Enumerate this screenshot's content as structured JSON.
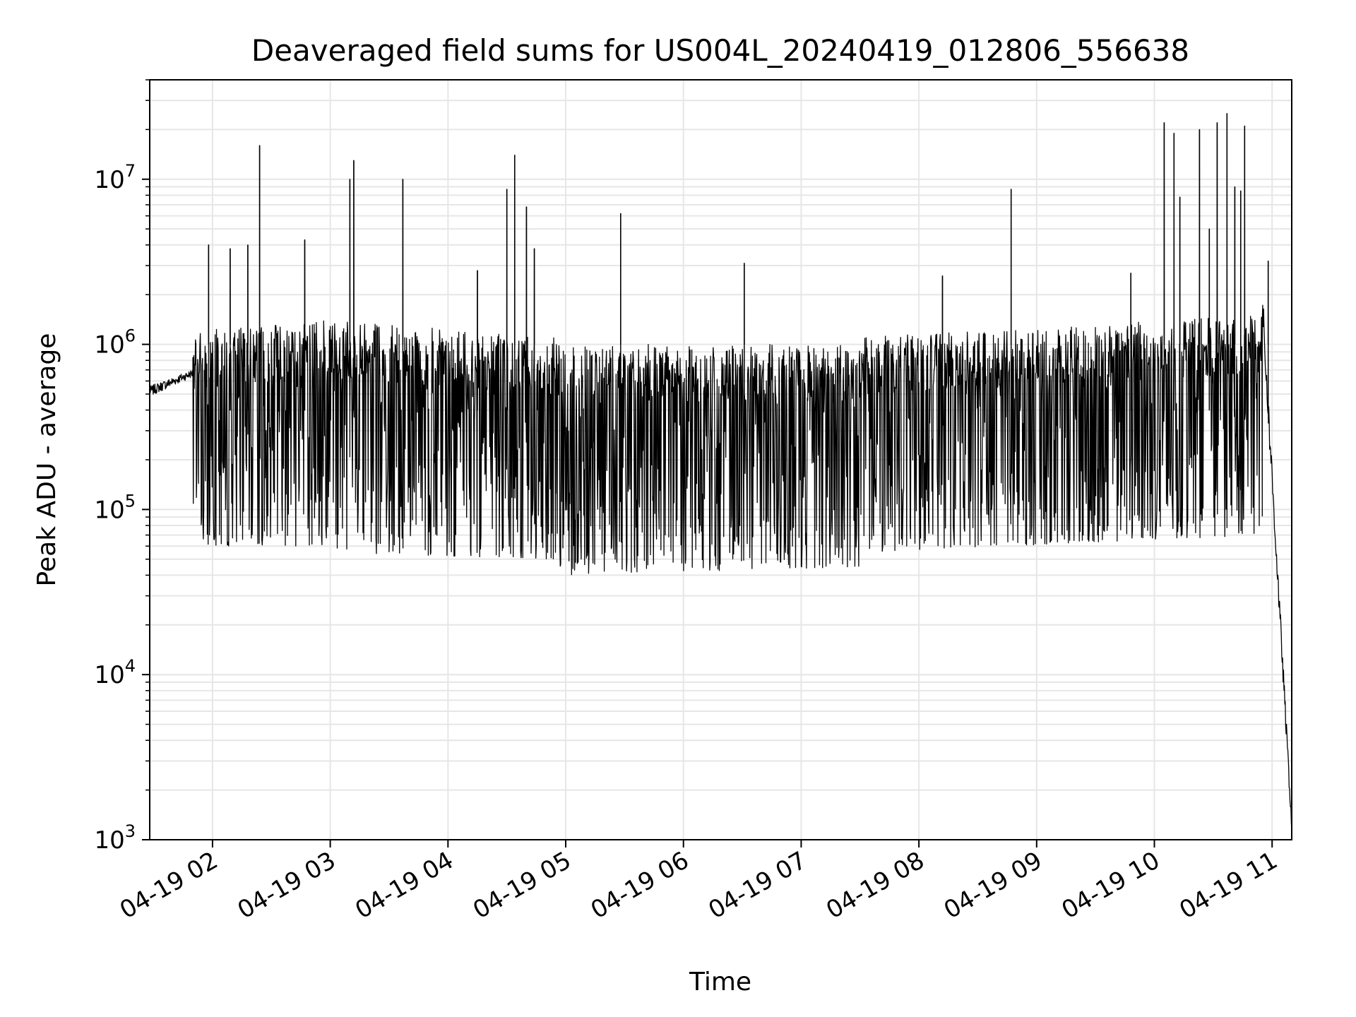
{
  "chart_data": {
    "type": "line",
    "title": "Deaveraged field sums for US004L_20240419_012806_556638",
    "xlabel": "Time",
    "ylabel": "Peak ADU - average",
    "yscale": "log",
    "ylim": [
      1000,
      40000000
    ],
    "xlim": [
      "2024-04-19 01:28",
      "2024-04-19 11:10"
    ],
    "grid": true,
    "line_color": "#000000",
    "grid_color": "#e6e6e6",
    "x_ticks": [
      "04-19 02",
      "04-19 03",
      "04-19 04",
      "04-19 05",
      "04-19 06",
      "04-19 07",
      "04-19 08",
      "04-19 09",
      "04-19 10",
      "04-19 11"
    ],
    "y_ticks": [
      {
        "value": 1000,
        "base": "10",
        "exp": "3"
      },
      {
        "value": 10000,
        "base": "10",
        "exp": "4"
      },
      {
        "value": 100000,
        "base": "10",
        "exp": "5"
      },
      {
        "value": 1000000,
        "base": "10",
        "exp": "6"
      },
      {
        "value": 10000000,
        "base": "10",
        "exp": "7"
      }
    ],
    "series": [
      {
        "style": "noisy-band",
        "segments": [
          {
            "x": [
              "2024-04-19 01:28",
              "2024-04-19 01:50"
            ],
            "upper": [
              600000,
              750000
            ],
            "lower": [
              450000,
              600000
            ]
          },
          {
            "x": [
              "2024-04-19 01:50",
              "2024-04-19 03:00"
            ],
            "upper": [
              1200000,
              1400000
            ],
            "lower": [
              60000,
              60000
            ]
          },
          {
            "x": [
              "2024-04-19 03:00",
              "2024-04-19 04:55"
            ],
            "upper": [
              1400000,
              1100000
            ],
            "lower": [
              55000,
              50000
            ]
          },
          {
            "x": [
              "2024-04-19 04:55",
              "2024-04-19 07:30"
            ],
            "upper": [
              1000000,
              1000000
            ],
            "lower": [
              40000,
              45000
            ]
          },
          {
            "x": [
              "2024-04-19 07:30",
              "2024-04-19 10:55"
            ],
            "upper": [
              1100000,
              1500000
            ],
            "lower": [
              55000,
              70000
            ]
          },
          {
            "x": [
              "2024-04-19 10:55",
              "2024-04-19 11:10"
            ],
            "upper": [
              3000000,
              1500
            ],
            "lower": [
              1000000,
              1000
            ]
          }
        ],
        "spikes": [
          {
            "x": "2024-04-19 01:58",
            "y": 4000000
          },
          {
            "x": "2024-04-19 02:09",
            "y": 3800000
          },
          {
            "x": "2024-04-19 02:18",
            "y": 4000000
          },
          {
            "x": "2024-04-19 02:24",
            "y": 16000000
          },
          {
            "x": "2024-04-19 02:47",
            "y": 4300000
          },
          {
            "x": "2024-04-19 03:10",
            "y": 10000000
          },
          {
            "x": "2024-04-19 03:12",
            "y": 13000000
          },
          {
            "x": "2024-04-19 03:37",
            "y": 10000000
          },
          {
            "x": "2024-04-19 04:15",
            "y": 2800000
          },
          {
            "x": "2024-04-19 04:30",
            "y": 8700000
          },
          {
            "x": "2024-04-19 04:34",
            "y": 14000000
          },
          {
            "x": "2024-04-19 04:40",
            "y": 6800000
          },
          {
            "x": "2024-04-19 04:44",
            "y": 3800000
          },
          {
            "x": "2024-04-19 05:28",
            "y": 6200000
          },
          {
            "x": "2024-04-19 06:31",
            "y": 3100000
          },
          {
            "x": "2024-04-19 08:12",
            "y": 2600000
          },
          {
            "x": "2024-04-19 08:47",
            "y": 8700000
          },
          {
            "x": "2024-04-19 09:48",
            "y": 2700000
          },
          {
            "x": "2024-04-19 10:05",
            "y": 22000000
          },
          {
            "x": "2024-04-19 10:10",
            "y": 19000000
          },
          {
            "x": "2024-04-19 10:13",
            "y": 7800000
          },
          {
            "x": "2024-04-19 10:23",
            "y": 20000000
          },
          {
            "x": "2024-04-19 10:28",
            "y": 5000000
          },
          {
            "x": "2024-04-19 10:32",
            "y": 22000000
          },
          {
            "x": "2024-04-19 10:37",
            "y": 25000000
          },
          {
            "x": "2024-04-19 10:41",
            "y": 9000000
          },
          {
            "x": "2024-04-19 10:44",
            "y": 8500000
          },
          {
            "x": "2024-04-19 10:46",
            "y": 21000000
          },
          {
            "x": "2024-04-19 10:58",
            "y": 3200000
          }
        ]
      }
    ]
  }
}
